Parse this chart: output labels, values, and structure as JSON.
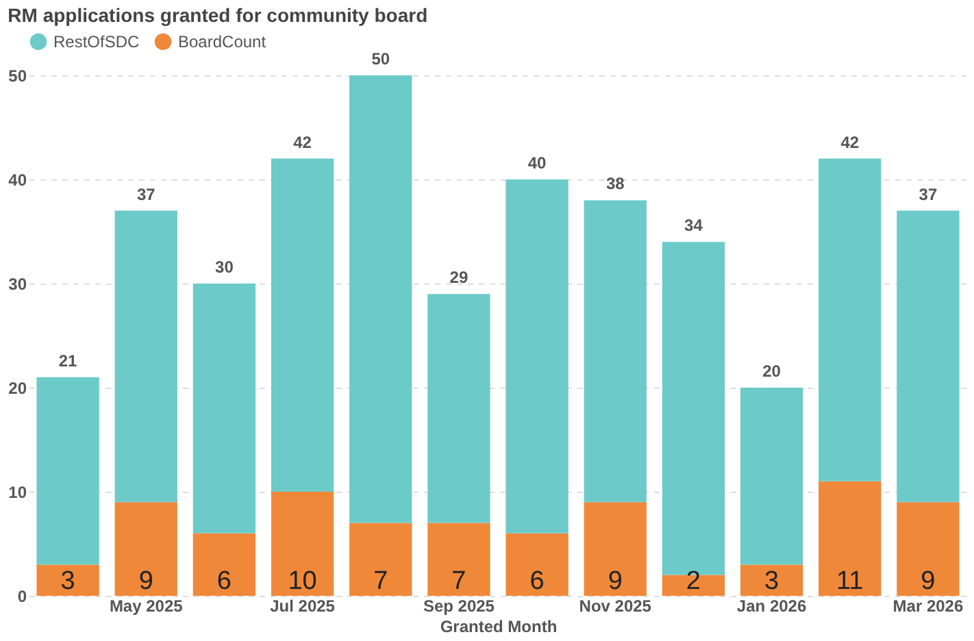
{
  "chart_data": {
    "type": "bar",
    "title": "RM applications granted for community board",
    "xlabel": "Granted Month",
    "categories": [
      null,
      "May 2025",
      null,
      "Jul 2025",
      null,
      "Sep 2025",
      null,
      "Nov 2025",
      null,
      "Jan 2026",
      null,
      "Mar 2026"
    ],
    "stacked": true,
    "ylim": [
      0,
      50
    ],
    "yticks": [
      0,
      10,
      20,
      30,
      40,
      50
    ],
    "grid": "y",
    "legend": "top left",
    "series": [
      {
        "name": "BoardCount",
        "color": "#f0883a",
        "values": [
          3,
          9,
          6,
          10,
          7,
          7,
          6,
          9,
          2,
          3,
          11,
          9
        ],
        "value_labels": [
          "3",
          "9",
          "6",
          "10",
          "7",
          "7",
          "6",
          "9",
          "2",
          "3",
          "11",
          "9"
        ]
      },
      {
        "name": "RestOfSDC",
        "color": "#6ccbc9",
        "values": [
          18,
          28,
          24,
          32,
          43,
          22,
          34,
          29,
          32,
          17,
          31,
          28
        ]
      }
    ],
    "totals": [
      "21",
      "37",
      "30",
      "42",
      "50",
      "29",
      "40",
      "38",
      "34",
      "20",
      "42",
      "37"
    ]
  }
}
